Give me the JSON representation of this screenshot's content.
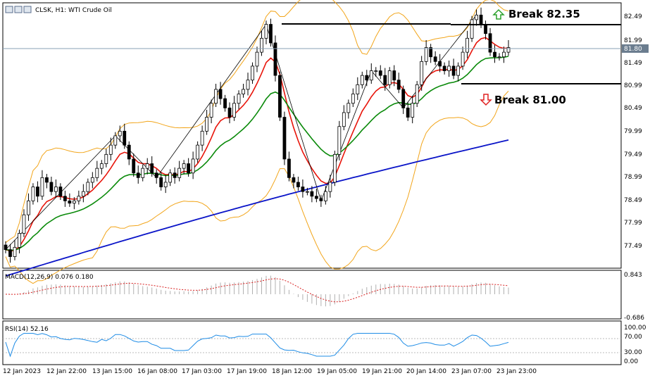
{
  "header": {
    "title": "CLSK, H1:  WTI Crude Oil",
    "macd_label": "MACD(12,26,9) 0.076 0.180",
    "rsi_label": "RSI(14) 52.16"
  },
  "annotations": {
    "break_up": "Break 82.35",
    "break_down": "Break 81.00"
  },
  "price_axis": {
    "ticks": [
      "82.49",
      "81.99",
      "81.49",
      "80.99",
      "80.49",
      "79.99",
      "79.49",
      "78.99",
      "78.49",
      "77.99",
      "77.49"
    ],
    "current_price": "81.80"
  },
  "macd_axis": {
    "ticks": [
      "0.843",
      "-0.686"
    ]
  },
  "rsi_axis": {
    "ticks": [
      "100.00",
      "70.00",
      "30.00",
      "0.00"
    ]
  },
  "time_axis": {
    "ticks": [
      "12 Jan 2023",
      "12 Jan 22:00",
      "13 Jan 15:00",
      "16 Jan 08:00",
      "17 Jan 03:00",
      "17 Jan 19:00",
      "18 Jan 12:00",
      "19 Jan 05:00",
      "19 Jan 21:00",
      "20 Jan 14:00",
      "23 Jan 07:00",
      "23 Jan 23:00"
    ]
  },
  "colors": {
    "candle": "#000000",
    "ma_fast": "#e8140a",
    "ma_mid": "#0a8a0a",
    "ma_slow": "#0a14c8",
    "bollinger": "#f2a51a",
    "macd_signal": "#d81e1e",
    "macd_hist": "#b0b0b0",
    "rsi": "#1e8ce6",
    "arrow_up": "#2aa02a",
    "arrow_down": "#e02020"
  },
  "chart_data": {
    "type": "candlestick",
    "symbol": "CLSK",
    "timeframe": "H1",
    "levels": {
      "resistance": 82.35,
      "support": 81.0,
      "current": 81.8
    },
    "ylim": [
      77.2,
      82.6
    ],
    "close": [
      77.45,
      77.3,
      77.5,
      77.8,
      78.2,
      78.5,
      78.8,
      78.6,
      79.0,
      78.9,
      78.7,
      78.8,
      78.6,
      78.5,
      78.45,
      78.5,
      78.6,
      78.7,
      78.9,
      79.0,
      79.2,
      79.3,
      79.5,
      79.7,
      79.9,
      80.0,
      79.7,
      79.4,
      79.1,
      79.0,
      79.2,
      79.3,
      79.1,
      79.0,
      78.8,
      78.9,
      79.1,
      79.0,
      79.2,
      79.3,
      79.1,
      79.4,
      79.7,
      80.0,
      80.3,
      80.6,
      80.9,
      80.7,
      80.5,
      80.3,
      80.6,
      80.8,
      80.9,
      81.1,
      81.4,
      81.7,
      82.0,
      82.3,
      81.9,
      81.2,
      80.3,
      79.4,
      79.0,
      78.9,
      78.8,
      78.7,
      78.7,
      78.6,
      78.55,
      78.5,
      78.7,
      78.9,
      79.5,
      80.1,
      80.4,
      80.6,
      80.8,
      81.0,
      81.2,
      81.1,
      81.3,
      81.3,
      81.2,
      81.0,
      81.3,
      81.1,
      80.9,
      80.5,
      80.3,
      80.6,
      81.0,
      81.5,
      81.8,
      81.6,
      81.5,
      81.4,
      81.3,
      81.4,
      81.2,
      81.4,
      81.7,
      82.0,
      82.4,
      82.5,
      82.3,
      82.1,
      81.7,
      81.6,
      81.6,
      81.7,
      81.8
    ]
  }
}
